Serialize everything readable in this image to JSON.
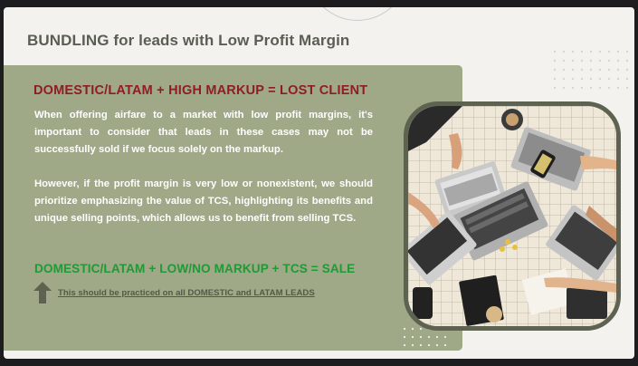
{
  "slide": {
    "title_bold": "BUNDLING",
    "title_rest": " for leads with Low Profit Margin",
    "heading_red": "DOMESTIC/LATAM + HIGH MARKUP = LOST CLIENT",
    "paragraph_1": "When offering airfare to a market with low profit margins, it's important to consider that leads in these cases may not be successfully sold if we focus solely on the markup.",
    "paragraph_2": "However, if the profit margin is very low or nonexistent, we should prioritize emphasizing the value of TCS, highlighting its benefits and unique selling points, which allows us to benefit from selling TCS.",
    "heading_green": "DOMESTIC/LATAM + LOW/NO MARKUP + TCS = SALE",
    "note": "This should be practiced on all DOMESTIC and LATAM LEADS"
  },
  "icons": {
    "arrow": "arrow-up-icon"
  },
  "colors": {
    "panel": "#9fa887",
    "heading_red": "#8f1d24",
    "heading_green": "#1f9a34",
    "photo_frame": "#5d6350",
    "title": "#5a5e53"
  }
}
